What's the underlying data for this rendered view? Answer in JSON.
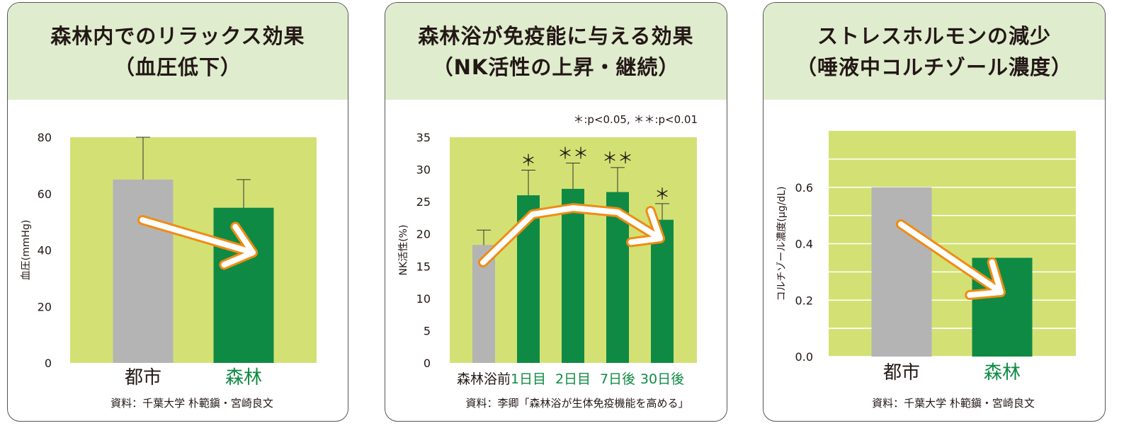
{
  "colors": {
    "header_bg": "#e0ecce",
    "plot_bg": "#d3e174",
    "grid": "#ffffff",
    "bar_city": "#b4b4b4",
    "bar_forest": "#0f8a44",
    "arrow_outline": "#f08c14",
    "arrow_fill": "#ffffff",
    "text": "#231815",
    "green_label": "#0f8a44"
  },
  "chart_data": [
    {
      "type": "bar",
      "title_lines": [
        "森林内でのリラックス効果",
        "（血圧低下）"
      ],
      "ylabel": "血圧(mmHg)",
      "ylim": [
        0,
        80
      ],
      "yticks": [
        "0",
        "20",
        "40",
        "60",
        "80"
      ],
      "categories": [
        "都市",
        "森林"
      ],
      "values": [
        65,
        55
      ],
      "error_top": [
        80,
        65
      ],
      "bar_colors": [
        "#b4b4b4",
        "#0f8a44"
      ],
      "label_colors": [
        "#231815",
        "#0f8a44"
      ],
      "grid": false,
      "source": "資料：千葉大学 朴範鎭・宮崎良文"
    },
    {
      "type": "bar",
      "title_lines": [
        "森林浴が免疫能に与える効果",
        "（NK活性の上昇・継続）"
      ],
      "note": "＊:p<0.05, ＊＊:p<0.01",
      "ylabel": "NK活性(%)",
      "ylim": [
        0,
        35
      ],
      "yticks": [
        "0",
        "5",
        "10",
        "15",
        "20",
        "25",
        "30",
        "35"
      ],
      "categories": [
        "森林浴前",
        "1日目",
        "2日目",
        "7日後",
        "30日後"
      ],
      "values": [
        18.3,
        26,
        27,
        26.5,
        22.2
      ],
      "error_top": [
        20.6,
        29.9,
        31,
        30.3,
        24.7
      ],
      "significance": [
        "",
        "＊",
        "＊＊",
        "＊＊",
        "＊"
      ],
      "bar_colors": [
        "#b4b4b4",
        "#0f8a44",
        "#0f8a44",
        "#0f8a44",
        "#0f8a44"
      ],
      "label_colors": [
        "#231815",
        "#0f8a44",
        "#0f8a44",
        "#0f8a44",
        "#0f8a44"
      ],
      "grid": false,
      "source": "資料：李卿「森林浴が生体免疫機能を高める」"
    },
    {
      "type": "bar",
      "title_lines": [
        "ストレスホルモンの減少",
        "（唾液中コルチゾール濃度）"
      ],
      "ylabel": "コルチゾール濃度(μg/dL)",
      "ylim": [
        0,
        0.8
      ],
      "yticks": [
        "0.0",
        "0.2",
        "0.4",
        "0.6"
      ],
      "categories": [
        "都市",
        "森林"
      ],
      "values": [
        0.6,
        0.35
      ],
      "bar_colors": [
        "#b4b4b4",
        "#0f8a44"
      ],
      "label_colors": [
        "#231815",
        "#0f8a44"
      ],
      "grid": true,
      "source": "資料：千葉大学 朴範鎭・宮崎良文"
    }
  ]
}
